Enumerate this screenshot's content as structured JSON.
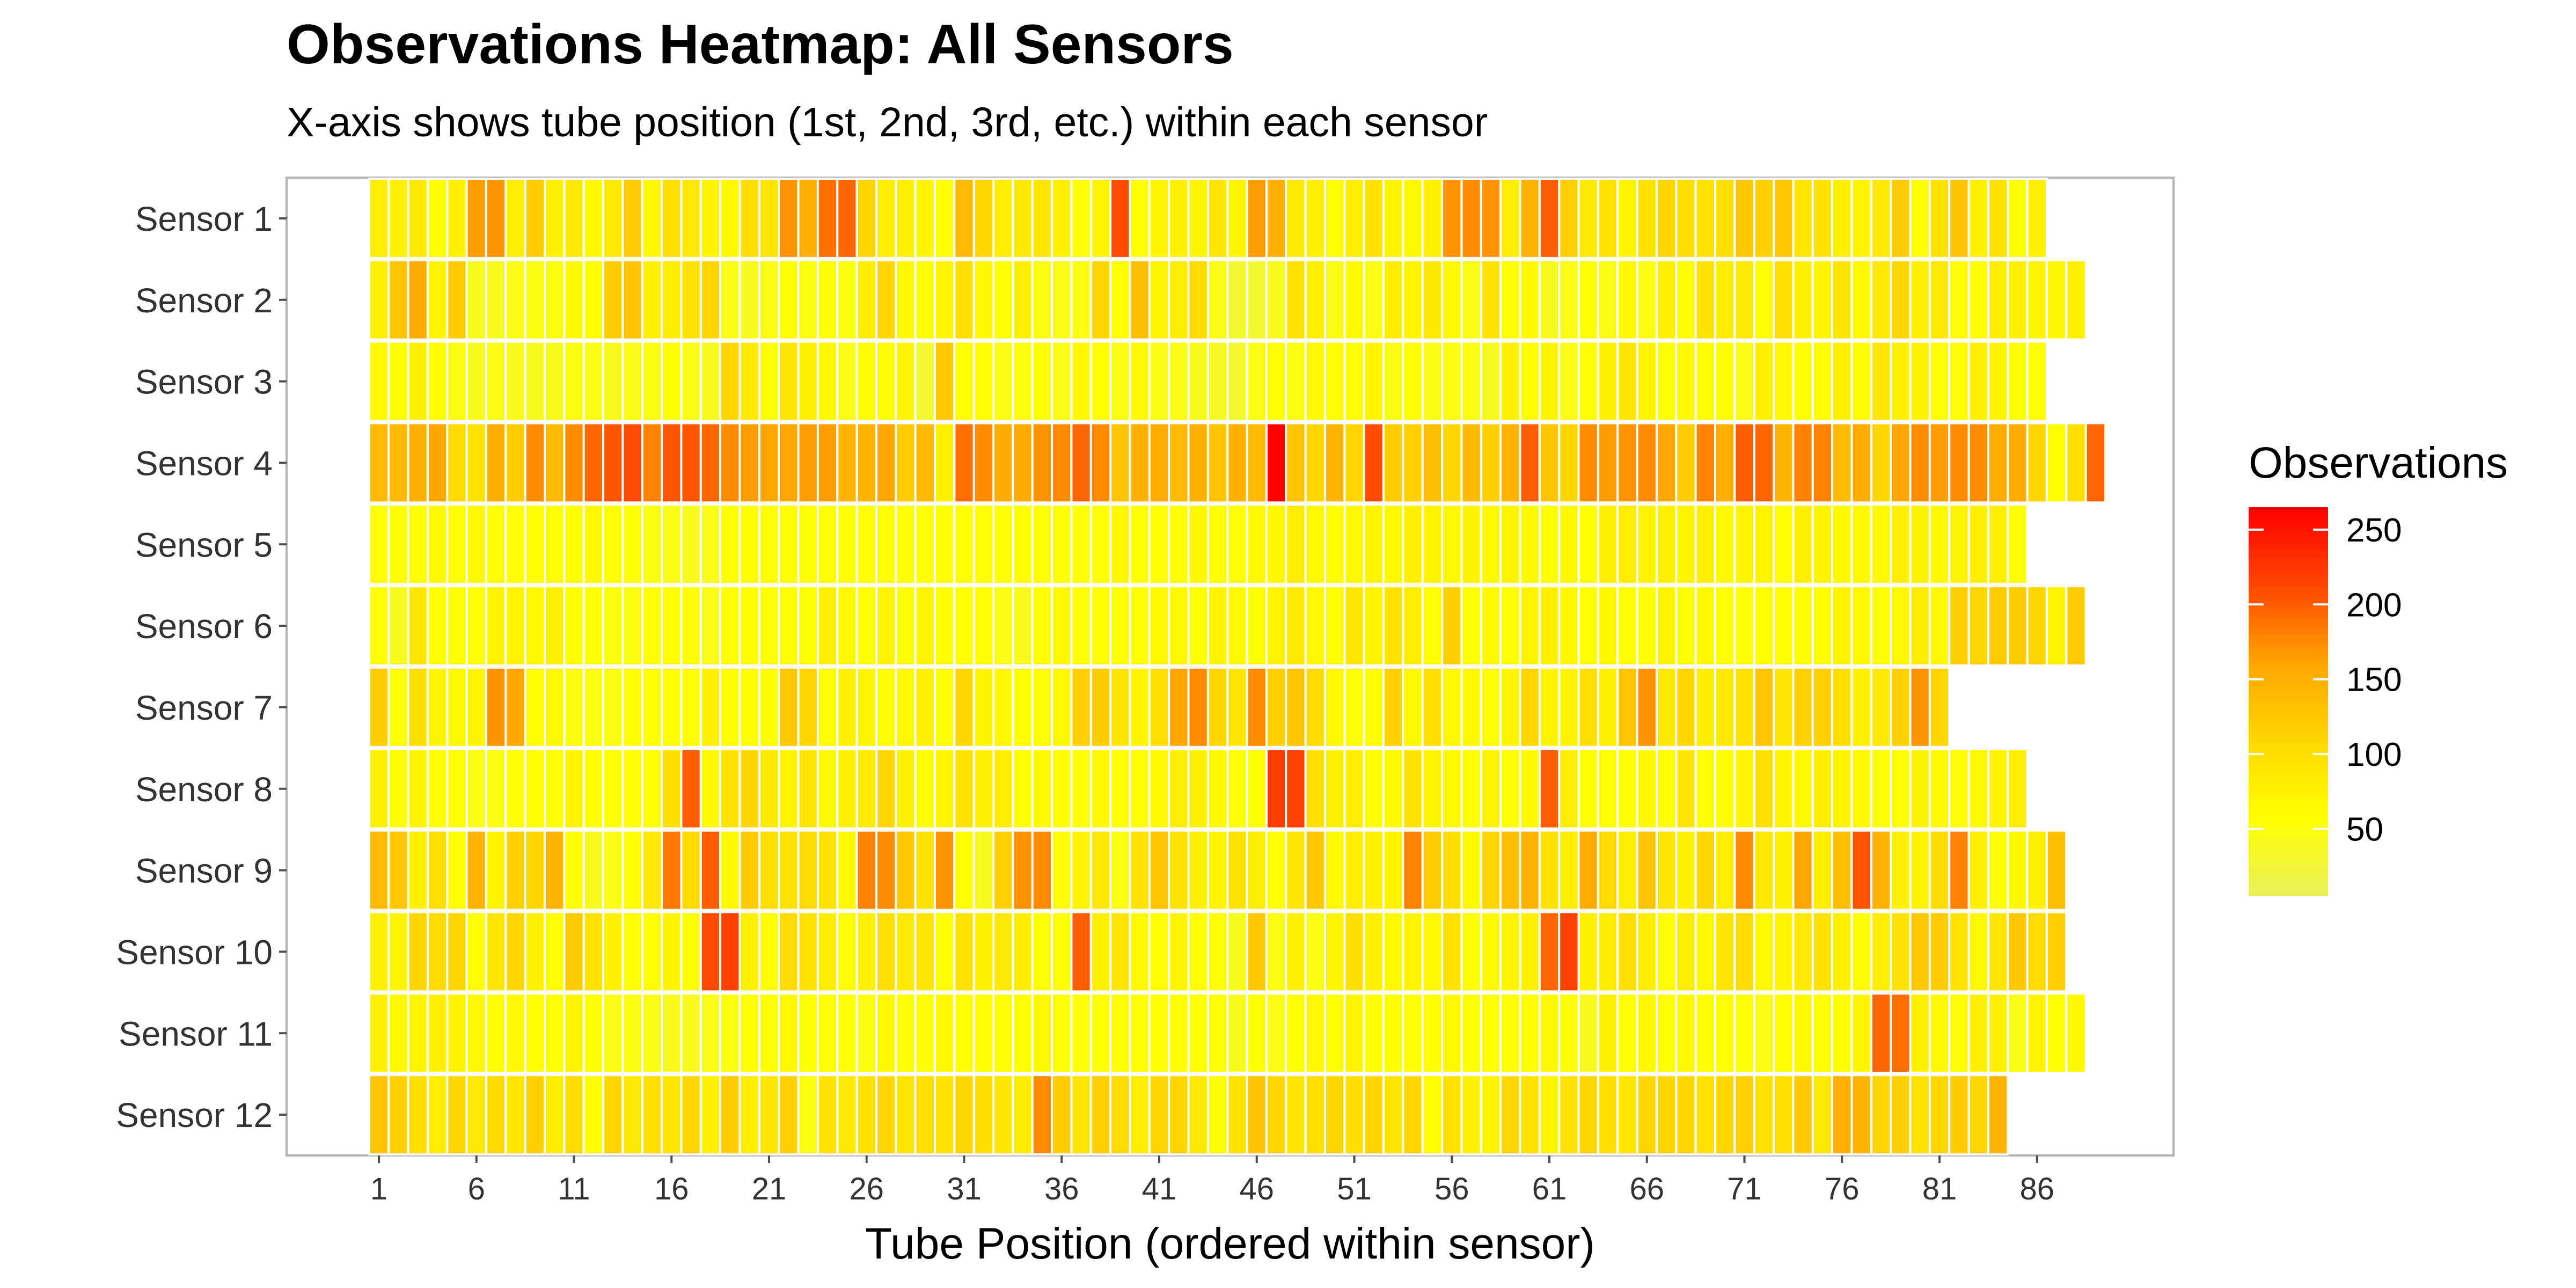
{
  "chart_data": {
    "type": "heatmap",
    "title": "Observations Heatmap: All Sensors",
    "subtitle": "X-axis shows tube position (1st, 2nd, 3rd, etc.) within each sensor",
    "xlabel": "Tube Position (ordered within sensor)",
    "ylabel": "",
    "x_ticks": [
      1,
      6,
      11,
      16,
      21,
      26,
      31,
      36,
      41,
      46,
      51,
      56,
      61,
      66,
      71,
      76,
      81,
      86
    ],
    "x_range": [
      1,
      90
    ],
    "y_categories": [
      "Sensor 1",
      "Sensor 2",
      "Sensor 3",
      "Sensor 4",
      "Sensor 5",
      "Sensor 6",
      "Sensor 7",
      "Sensor 8",
      "Sensor 9",
      "Sensor 10",
      "Sensor 11",
      "Sensor 12"
    ],
    "legend": {
      "title": "Observations",
      "placement": "right",
      "ticks": [
        50,
        100,
        150,
        200,
        250
      ],
      "range": [
        5,
        265
      ],
      "colors": [
        "#e8f05a",
        "#ffff00",
        "#ffd700",
        "#ffa500",
        "#ff4500",
        "#ff0000"
      ]
    },
    "series": [
      {
        "values": [
          80,
          75,
          85,
          60,
          75,
          165,
          170,
          80,
          120,
          75,
          85,
          65,
          85,
          120,
          65,
          100,
          85,
          70,
          65,
          100,
          90,
          170,
          150,
          190,
          195,
          110,
          80,
          75,
          70,
          60,
          140,
          110,
          80,
          85,
          90,
          75,
          60,
          70,
          210,
          60,
          70,
          75,
          70,
          90,
          70,
          165,
          150,
          85,
          75,
          60,
          80,
          95,
          70,
          65,
          75,
          170,
          175,
          170,
          80,
          145,
          200,
          115,
          85,
          95,
          70,
          95,
          110,
          100,
          95,
          100,
          125,
          115,
          125,
          90,
          95,
          75,
          70,
          85,
          120,
          60,
          95,
          130,
          75,
          95,
          55,
          75
        ]
      },
      {
        "values": [
          75,
          130,
          155,
          70,
          120,
          40,
          40,
          45,
          50,
          50,
          65,
          60,
          120,
          130,
          75,
          80,
          95,
          110,
          45,
          40,
          45,
          60,
          50,
          55,
          50,
          80,
          110,
          65,
          55,
          70,
          100,
          65,
          55,
          75,
          50,
          45,
          50,
          110,
          60,
          135,
          70,
          80,
          105,
          45,
          30,
          30,
          40,
          95,
          75,
          45,
          65,
          45,
          80,
          70,
          85,
          65,
          45,
          95,
          60,
          65,
          40,
          45,
          60,
          45,
          65,
          50,
          75,
          60,
          95,
          80,
          85,
          60,
          100,
          75,
          70,
          90,
          65,
          85,
          110,
          75,
          85,
          60,
          55,
          80,
          75,
          70,
          65,
          75
        ]
      },
      {
        "values": [
          65,
          55,
          75,
          60,
          50,
          40,
          45,
          40,
          40,
          40,
          50,
          45,
          40,
          45,
          50,
          55,
          45,
          40,
          110,
          85,
          60,
          90,
          75,
          65,
          45,
          55,
          55,
          70,
          30,
          125,
          60,
          55,
          45,
          50,
          55,
          45,
          65,
          60,
          50,
          65,
          45,
          45,
          40,
          35,
          30,
          45,
          55,
          50,
          65,
          55,
          60,
          70,
          45,
          55,
          45,
          50,
          50,
          40,
          75,
          60,
          70,
          45,
          55,
          75,
          90,
          70,
          55,
          65,
          60,
          55,
          45,
          75,
          65,
          55,
          60,
          75,
          60,
          90,
          75,
          70,
          55,
          60,
          75,
          70,
          55,
          60
        ]
      },
      {
        "values": [
          140,
          140,
          150,
          160,
          105,
          95,
          155,
          120,
          175,
          140,
          175,
          195,
          205,
          210,
          180,
          205,
          205,
          195,
          175,
          165,
          160,
          160,
          165,
          165,
          145,
          145,
          160,
          120,
          140,
          75,
          190,
          175,
          155,
          155,
          170,
          175,
          195,
          175,
          130,
          150,
          155,
          140,
          150,
          130,
          150,
          140,
          270,
          130,
          110,
          145,
          110,
          210,
          120,
          115,
          135,
          110,
          140,
          115,
          145,
          200,
          130,
          110,
          175,
          165,
          170,
          175,
          160,
          120,
          180,
          150,
          200,
          195,
          145,
          180,
          180,
          140,
          155,
          110,
          160,
          175,
          165,
          175,
          175,
          155,
          155,
          110,
          60,
          100,
          195
        ]
      },
      {
        "values": [
          60,
          55,
          60,
          65,
          60,
          65,
          60,
          55,
          55,
          60,
          60,
          65,
          60,
          55,
          50,
          45,
          40,
          45,
          55,
          60,
          60,
          60,
          55,
          60,
          55,
          60,
          60,
          55,
          55,
          60,
          60,
          60,
          55,
          60,
          60,
          55,
          60,
          60,
          65,
          60,
          60,
          60,
          65,
          60,
          60,
          65,
          65,
          80,
          65,
          60,
          65,
          70,
          65,
          75,
          70,
          65,
          70,
          65,
          70,
          65,
          60,
          65,
          60,
          75,
          80,
          70,
          75,
          70,
          75,
          65,
          70,
          70,
          60,
          75,
          70,
          65,
          65,
          65,
          75,
          70,
          65,
          70,
          75,
          75,
          60
        ]
      },
      {
        "values": [
          60,
          40,
          90,
          60,
          55,
          55,
          70,
          70,
          65,
          75,
          60,
          55,
          50,
          50,
          60,
          55,
          60,
          45,
          55,
          60,
          60,
          60,
          55,
          75,
          65,
          60,
          70,
          55,
          70,
          60,
          55,
          60,
          45,
          40,
          55,
          65,
          55,
          60,
          60,
          55,
          65,
          65,
          60,
          70,
          65,
          55,
          70,
          85,
          65,
          55,
          90,
          70,
          95,
          80,
          60,
          115,
          60,
          65,
          60,
          70,
          75,
          65,
          60,
          65,
          60,
          60,
          70,
          55,
          65,
          55,
          60,
          60,
          55,
          60,
          60,
          70,
          65,
          60,
          65,
          80,
          65,
          115,
          110,
          120,
          120,
          110,
          70,
          120
        ]
      },
      {
        "values": [
          120,
          60,
          100,
          70,
          65,
          70,
          170,
          160,
          60,
          65,
          50,
          50,
          50,
          60,
          55,
          55,
          60,
          75,
          60,
          60,
          60,
          125,
          110,
          60,
          75,
          70,
          60,
          65,
          75,
          60,
          110,
          70,
          65,
          60,
          60,
          65,
          115,
          120,
          90,
          70,
          100,
          160,
          175,
          110,
          90,
          175,
          115,
          130,
          105,
          65,
          55,
          60,
          115,
          65,
          100,
          65,
          65,
          60,
          70,
          110,
          70,
          70,
          100,
          75,
          130,
          170,
          85,
          110,
          80,
          85,
          95,
          130,
          90,
          115,
          115,
          100,
          75,
          85,
          115,
          170,
          110
        ]
      },
      {
        "values": [
          75,
          60,
          70,
          60,
          60,
          45,
          50,
          55,
          60,
          55,
          70,
          60,
          60,
          60,
          55,
          100,
          200,
          65,
          95,
          110,
          85,
          70,
          90,
          65,
          75,
          85,
          110,
          75,
          55,
          70,
          95,
          75,
          80,
          60,
          65,
          60,
          55,
          65,
          60,
          60,
          65,
          80,
          75,
          65,
          55,
          55,
          220,
          215,
          100,
          75,
          80,
          60,
          65,
          95,
          70,
          65,
          60,
          70,
          60,
          65,
          200,
          80,
          60,
          55,
          60,
          65,
          60,
          90,
          60,
          55,
          70,
          100,
          70,
          65,
          80,
          70,
          65,
          60,
          60,
          70,
          65,
          60,
          65,
          70,
          80
        ]
      },
      {
        "values": [
          140,
          125,
          75,
          100,
          60,
          145,
          70,
          115,
          110,
          145,
          60,
          40,
          45,
          60,
          85,
          185,
          105,
          200,
          65,
          120,
          100,
          95,
          105,
          95,
          65,
          180,
          175,
          125,
          95,
          170,
          55,
          40,
          115,
          170,
          175,
          60,
          70,
          85,
          50,
          95,
          130,
          95,
          75,
          70,
          95,
          80,
          60,
          90,
          125,
          65,
          80,
          75,
          70,
          180,
          120,
          100,
          65,
          110,
          135,
          145,
          95,
          80,
          155,
          105,
          80,
          130,
          90,
          75,
          110,
          80,
          175,
          85,
          75,
          160,
          80,
          135,
          205,
          145,
          75,
          70,
          105,
          180,
          75,
          60,
          65,
          75,
          135
        ]
      },
      {
        "values": [
          75,
          70,
          110,
          105,
          110,
          60,
          90,
          110,
          75,
          60,
          120,
          95,
          75,
          55,
          60,
          70,
          55,
          210,
          215,
          75,
          60,
          105,
          95,
          80,
          60,
          75,
          100,
          85,
          90,
          60,
          95,
          75,
          85,
          80,
          60,
          55,
          200,
          75,
          90,
          65,
          60,
          70,
          60,
          55,
          40,
          125,
          50,
          75,
          45,
          70,
          100,
          75,
          65,
          70,
          65,
          95,
          55,
          65,
          70,
          75,
          195,
          215,
          75,
          80,
          100,
          80,
          60,
          80,
          65,
          90,
          105,
          65,
          70,
          85,
          95,
          75,
          60,
          80,
          95,
          125,
          120,
          95,
          65,
          90,
          125,
          105,
          115
        ]
      },
      {
        "values": [
          75,
          65,
          70,
          75,
          70,
          65,
          60,
          65,
          55,
          60,
          70,
          55,
          45,
          50,
          45,
          40,
          40,
          45,
          50,
          60,
          55,
          65,
          55,
          60,
          55,
          50,
          65,
          55,
          60,
          65,
          60,
          55,
          60,
          60,
          65,
          55,
          55,
          55,
          60,
          60,
          60,
          55,
          60,
          55,
          40,
          55,
          45,
          60,
          65,
          55,
          70,
          60,
          55,
          60,
          60,
          65,
          60,
          60,
          55,
          55,
          65,
          60,
          40,
          75,
          60,
          65,
          60,
          65,
          60,
          60,
          55,
          45,
          60,
          65,
          55,
          60,
          70,
          195,
          190,
          75,
          65,
          60,
          75,
          75,
          45,
          70,
          60,
          65
        ]
      },
      {
        "values": [
          130,
          115,
          100,
          80,
          110,
          85,
          105,
          90,
          115,
          80,
          105,
          60,
          110,
          85,
          100,
          90,
          110,
          75,
          120,
          80,
          90,
          115,
          50,
          95,
          85,
          95,
          110,
          90,
          100,
          95,
          110,
          100,
          90,
          80,
          175,
          120,
          90,
          115,
          105,
          80,
          110,
          110,
          85,
          55,
          95,
          130,
          110,
          90,
          100,
          110,
          100,
          110,
          90,
          110,
          60,
          95,
          75,
          70,
          110,
          95,
          70,
          95,
          110,
          100,
          90,
          110,
          110,
          110,
          95,
          110,
          115,
          95,
          100,
          125,
          85,
          150,
          145,
          110,
          115,
          95,
          110,
          120,
          110,
          145
        ]
      }
    ]
  }
}
